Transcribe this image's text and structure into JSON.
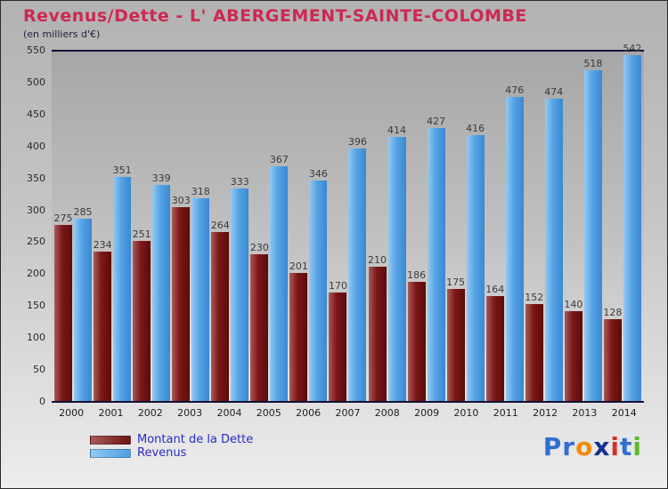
{
  "header": {
    "title": "Revenus/Dette - L' ABERGEMENT-SAINTE-COLOMBE",
    "subtitle": "(en milliers d'€)",
    "title_color": "#cc2952"
  },
  "chart_data": {
    "type": "bar",
    "title": "Revenus/Dette - L' ABERGEMENT-SAINTE-COLOMBE",
    "subtitle": "(en milliers d'€)",
    "categories": [
      "2000",
      "2001",
      "2002",
      "2003",
      "2004",
      "2005",
      "2006",
      "2007",
      "2008",
      "2009",
      "2010",
      "2011",
      "2012",
      "2013",
      "2014"
    ],
    "series": [
      {
        "name": "Montant de la Dette",
        "color": "#7c1616",
        "values": [
          275,
          234,
          251,
          303,
          264,
          230,
          201,
          170,
          210,
          186,
          175,
          164,
          152,
          140,
          128
        ]
      },
      {
        "name": "Revenus",
        "color": "#55a3e4",
        "values": [
          285,
          351,
          339,
          318,
          333,
          367,
          346,
          396,
          414,
          427,
          416,
          476,
          474,
          518,
          542
        ]
      }
    ],
    "xlabel": "",
    "ylabel": "",
    "ylim": [
      0,
      550
    ],
    "yticks": [
      0,
      50,
      100,
      150,
      200,
      250,
      300,
      350,
      400,
      450,
      500,
      550
    ],
    "grid": false,
    "legend_position": "bottom-left",
    "value_labels": true
  },
  "legend": {
    "items": [
      {
        "label": "Montant de la Dette",
        "color": "#6e1212"
      },
      {
        "label": "Revenus",
        "color": "#4d9ee2"
      }
    ]
  },
  "logo": {
    "text": "Proxiti",
    "letters": [
      {
        "ch": "P",
        "color": "#2f6fd0"
      },
      {
        "ch": "r",
        "color": "#2f6fd0"
      },
      {
        "ch": "o",
        "color": "#f08c00"
      },
      {
        "ch": "x",
        "color": "#152f8f"
      },
      {
        "ch": "i",
        "color": "#d42f2f"
      },
      {
        "ch": "t",
        "color": "#2f6fd0"
      },
      {
        "ch": "i",
        "color": "#5cb82a"
      }
    ]
  }
}
